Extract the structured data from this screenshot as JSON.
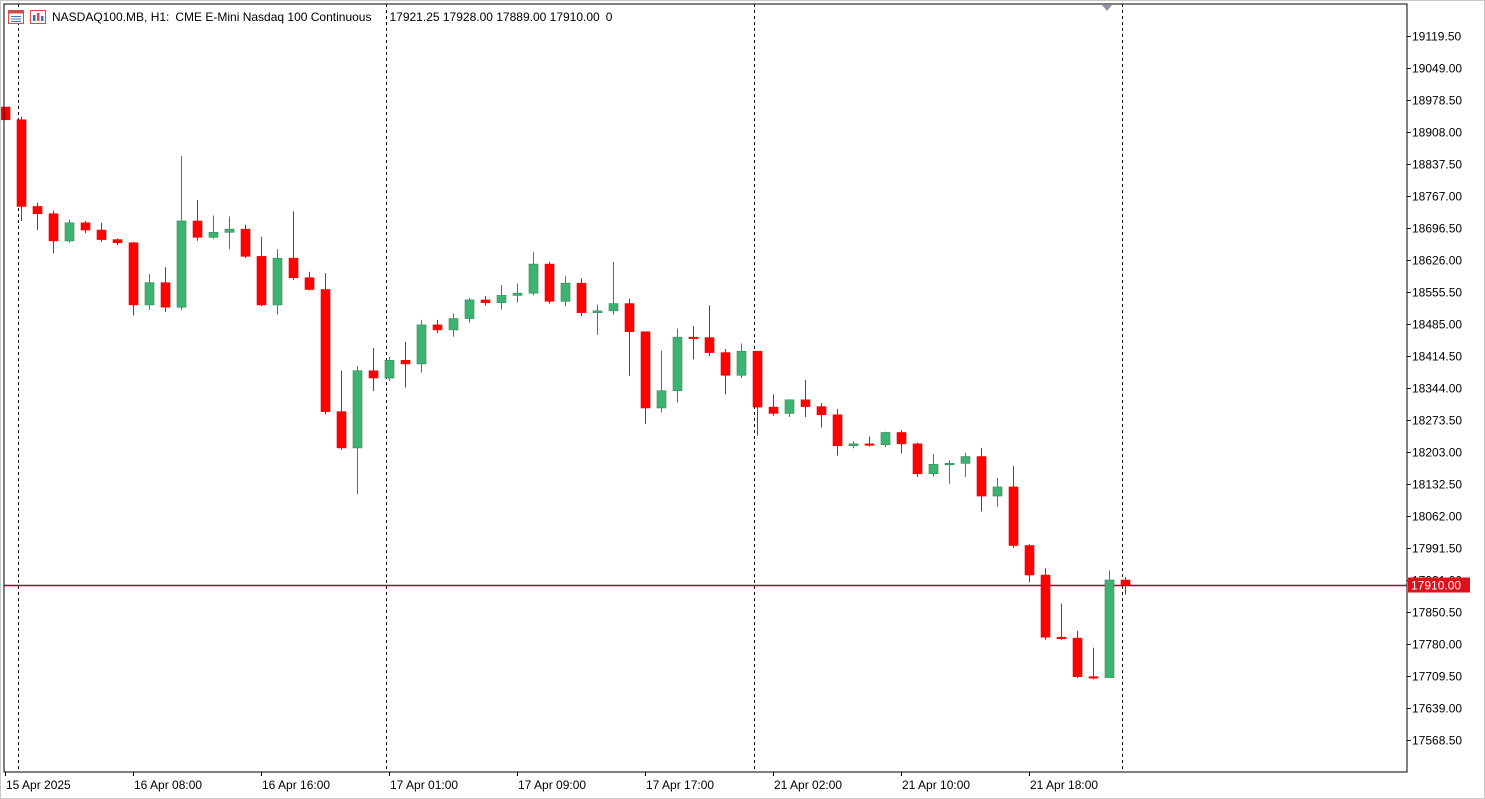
{
  "header": {
    "symbol": "NASDAQ100.MB, H1:",
    "description": "CME E-Mini Nasdaq 100 Continuous",
    "ohlc": "17921.25 17928.00 17889.00 17910.00",
    "volume": "0",
    "icons": [
      "chart-list-icon",
      "chart-properties-icon"
    ]
  },
  "colors": {
    "bull": "#3cb371",
    "bear": "#ff0000",
    "doji_bull": "#00ff00",
    "price_line": "#a0002a",
    "price_label_bg": "#e0101a",
    "grid_vertical": "#000000",
    "frame": "#000000"
  },
  "price_label": "17910.00",
  "chart_data": {
    "type": "candlestick",
    "timeframe": "H1",
    "ylim": [
      17498,
      19190
    ],
    "y_ticks": [
      "19119.50",
      "19049.00",
      "18978.50",
      "18908.00",
      "18837.50",
      "18767.00",
      "18696.50",
      "18626.00",
      "18555.50",
      "18485.00",
      "18414.50",
      "18344.00",
      "18273.50",
      "18203.00",
      "18132.50",
      "18062.00",
      "17991.50",
      "17921.00",
      "17850.50",
      "17780.00",
      "17709.50",
      "17639.00",
      "17568.50"
    ],
    "x_labels": [
      {
        "text": "15 Apr 2025",
        "bar": 0
      },
      {
        "text": "16 Apr 08:00",
        "bar": 8
      },
      {
        "text": "16 Apr 16:00",
        "bar": 16
      },
      {
        "text": "17 Apr 01:00",
        "bar": 24
      },
      {
        "text": "17 Apr 09:00",
        "bar": 32
      },
      {
        "text": "17 Apr 17:00",
        "bar": 40
      },
      {
        "text": "21 Apr 02:00",
        "bar": 48
      },
      {
        "text": "21 Apr 10:00",
        "bar": 56
      },
      {
        "text": "21 Apr 18:00",
        "bar": 64
      }
    ],
    "day_separators": [
      0.8,
      23.8,
      46.8,
      69.8
    ],
    "current_price": 17910,
    "candles": [
      {
        "o": 18963,
        "h": 18963,
        "l": 18935,
        "c": 18935
      },
      {
        "o": 18935,
        "h": 18942,
        "l": 18712,
        "c": 18744
      },
      {
        "o": 18744,
        "h": 18752,
        "l": 18692,
        "c": 18728
      },
      {
        "o": 18728,
        "h": 18735,
        "l": 18641,
        "c": 18668
      },
      {
        "o": 18668,
        "h": 18715,
        "l": 18664,
        "c": 18708
      },
      {
        "o": 18708,
        "h": 18712,
        "l": 18685,
        "c": 18692
      },
      {
        "o": 18692,
        "h": 18708,
        "l": 18666,
        "c": 18671
      },
      {
        "o": 18671,
        "h": 18674,
        "l": 18659,
        "c": 18664
      },
      {
        "o": 18664,
        "h": 18666,
        "l": 18504,
        "c": 18527
      },
      {
        "o": 18527,
        "h": 18595,
        "l": 18516,
        "c": 18576
      },
      {
        "o": 18576,
        "h": 18610,
        "l": 18512,
        "c": 18522
      },
      {
        "o": 18522,
        "h": 18855,
        "l": 18516,
        "c": 18712
      },
      {
        "o": 18712,
        "h": 18758,
        "l": 18668,
        "c": 18676
      },
      {
        "o": 18676,
        "h": 18724,
        "l": 18673,
        "c": 18687
      },
      {
        "o": 18687,
        "h": 18722,
        "l": 18650,
        "c": 18694
      },
      {
        "o": 18694,
        "h": 18704,
        "l": 18630,
        "c": 18634
      },
      {
        "o": 18634,
        "h": 18677,
        "l": 18524,
        "c": 18527
      },
      {
        "o": 18527,
        "h": 18650,
        "l": 18506,
        "c": 18630
      },
      {
        "o": 18630,
        "h": 18733,
        "l": 18582,
        "c": 18587
      },
      {
        "o": 18587,
        "h": 18600,
        "l": 18559,
        "c": 18561
      },
      {
        "o": 18561,
        "h": 18597,
        "l": 18286,
        "c": 18292
      },
      {
        "o": 18292,
        "h": 18382,
        "l": 18208,
        "c": 18212
      },
      {
        "o": 18212,
        "h": 18392,
        "l": 18110,
        "c": 18382
      },
      {
        "o": 18382,
        "h": 18432,
        "l": 18337,
        "c": 18366
      },
      {
        "o": 18366,
        "h": 18412,
        "l": 18360,
        "c": 18405
      },
      {
        "o": 18405,
        "h": 18446,
        "l": 18345,
        "c": 18397
      },
      {
        "o": 18397,
        "h": 18494,
        "l": 18378,
        "c": 18483
      },
      {
        "o": 18483,
        "h": 18494,
        "l": 18465,
        "c": 18472
      },
      {
        "o": 18472,
        "h": 18508,
        "l": 18457,
        "c": 18497
      },
      {
        "o": 18497,
        "h": 18542,
        "l": 18488,
        "c": 18538
      },
      {
        "o": 18538,
        "h": 18546,
        "l": 18526,
        "c": 18532
      },
      {
        "o": 18532,
        "h": 18571,
        "l": 18517,
        "c": 18548
      },
      {
        "o": 18548,
        "h": 18574,
        "l": 18532,
        "c": 18553
      },
      {
        "o": 18553,
        "h": 18644,
        "l": 18548,
        "c": 18617
      },
      {
        "o": 18617,
        "h": 18622,
        "l": 18530,
        "c": 18535
      },
      {
        "o": 18535,
        "h": 18591,
        "l": 18524,
        "c": 18575
      },
      {
        "o": 18575,
        "h": 18585,
        "l": 18502,
        "c": 18510
      },
      {
        "o": 18510,
        "h": 18528,
        "l": 18461,
        "c": 18514
      },
      {
        "o": 18514,
        "h": 18622,
        "l": 18506,
        "c": 18530
      },
      {
        "o": 18530,
        "h": 18541,
        "l": 18371,
        "c": 18468
      },
      {
        "o": 18468,
        "h": 18467,
        "l": 18265,
        "c": 18300
      },
      {
        "o": 18300,
        "h": 18426,
        "l": 18290,
        "c": 18338
      },
      {
        "o": 18338,
        "h": 18475,
        "l": 18312,
        "c": 18456
      },
      {
        "o": 18456,
        "h": 18480,
        "l": 18407,
        "c": 18455
      },
      {
        "o": 18455,
        "h": 18526,
        "l": 18414,
        "c": 18422
      },
      {
        "o": 18422,
        "h": 18430,
        "l": 18330,
        "c": 18372
      },
      {
        "o": 18372,
        "h": 18442,
        "l": 18366,
        "c": 18425
      },
      {
        "o": 18425,
        "h": 18425,
        "l": 18239,
        "c": 18302
      },
      {
        "o": 18302,
        "h": 18330,
        "l": 18283,
        "c": 18288
      },
      {
        "o": 18288,
        "h": 18318,
        "l": 18280,
        "c": 18318
      },
      {
        "o": 18318,
        "h": 18362,
        "l": 18280,
        "c": 18303
      },
      {
        "o": 18303,
        "h": 18311,
        "l": 18257,
        "c": 18285
      },
      {
        "o": 18285,
        "h": 18298,
        "l": 18195,
        "c": 18217
      },
      {
        "o": 18217,
        "h": 18227,
        "l": 18211,
        "c": 18221
      },
      {
        "o": 18221,
        "h": 18237,
        "l": 18215,
        "c": 18219
      },
      {
        "o": 18219,
        "h": 18248,
        "l": 18214,
        "c": 18246
      },
      {
        "o": 18246,
        "h": 18251,
        "l": 18200,
        "c": 18221
      },
      {
        "o": 18221,
        "h": 18224,
        "l": 18148,
        "c": 18155
      },
      {
        "o": 18155,
        "h": 18198,
        "l": 18149,
        "c": 18176
      },
      {
        "o": 18176,
        "h": 18185,
        "l": 18133,
        "c": 18178
      },
      {
        "o": 18178,
        "h": 18201,
        "l": 18148,
        "c": 18193
      },
      {
        "o": 18193,
        "h": 18212,
        "l": 18072,
        "c": 18106
      },
      {
        "o": 18106,
        "h": 18146,
        "l": 18082,
        "c": 18126
      },
      {
        "o": 18126,
        "h": 18172,
        "l": 17992,
        "c": 17997
      },
      {
        "o": 17997,
        "h": 18000,
        "l": 17916,
        "c": 17932
      },
      {
        "o": 17932,
        "h": 17947,
        "l": 17789,
        "c": 17795
      },
      {
        "o": 17795,
        "h": 17869,
        "l": 17789,
        "c": 17793
      },
      {
        "o": 17793,
        "h": 17809,
        "l": 17705,
        "c": 17708
      },
      {
        "o": 17708,
        "h": 17772,
        "l": 17702,
        "c": 17706
      },
      {
        "o": 17706,
        "h": 17942,
        "l": 17706,
        "c": 17921
      },
      {
        "o": 17921,
        "h": 17928,
        "l": 17889,
        "c": 17910
      }
    ]
  }
}
